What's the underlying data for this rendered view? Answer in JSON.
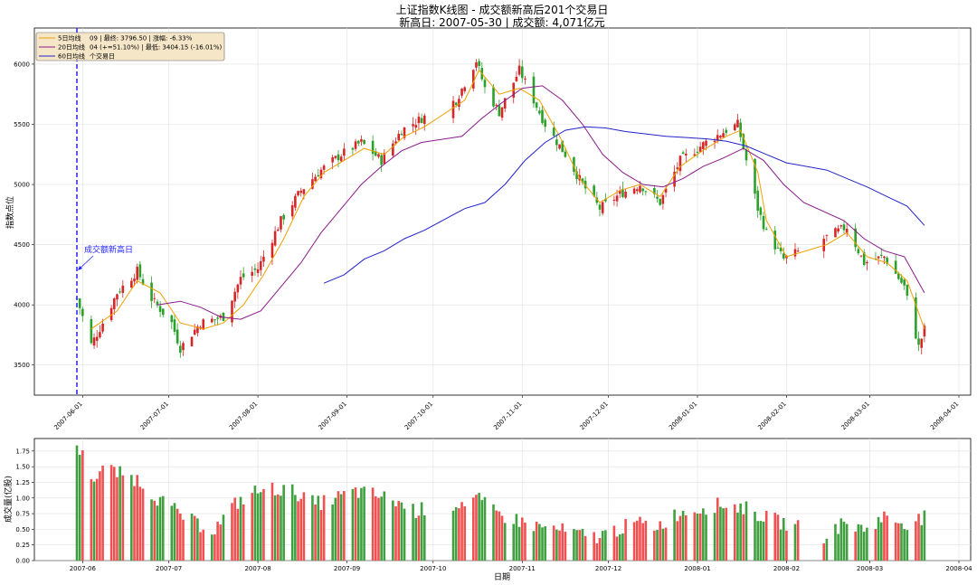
{
  "title_line1": "上证指数K线图 - 成交额新高后201个交易日",
  "title_line2": "新高日: 2007-05-30 | 成交额: 4,071亿元",
  "legend": {
    "items": [
      "5日均线",
      "20日均线",
      "60日均线"
    ],
    "info_line1": "09 | 最终: 3796.50 | 涨幅: -6.33%",
    "info_line2": "04 (+=51.10%) | 最低: 3404.15 (-16.01%)",
    "info_line3": "个交易日"
  },
  "annotation": "成交额新高日",
  "colors": {
    "up": "#d62728",
    "down": "#2ca02c",
    "ma5": "#f0a000",
    "ma20": "#8b1a8b",
    "ma60": "#2222cc",
    "marker": "#2222ff",
    "vol_up": "#f05050",
    "vol_down": "#40a040"
  },
  "chart_data": [
    {
      "type": "candlestick",
      "title": "上证指数K线图 - 成交额新高后201个交易日",
      "ylabel": "指数点位",
      "ylim": [
        3250,
        6300
      ],
      "y_ticks": [
        3500,
        4000,
        4500,
        5000,
        5500,
        6000
      ],
      "x_ticks": [
        "2007-06-01",
        "2007-07-01",
        "2007-08-01",
        "2007-09-01",
        "2007-10-01",
        "2007-11-01",
        "2007-12-01",
        "2008-01-01",
        "2008-02-01",
        "2008-03-01",
        "2008-04-01"
      ],
      "marker_date": "2007-05-30",
      "close_path": [
        [
          "2007-05-30",
          4053
        ],
        [
          "2007-06-04",
          3670
        ],
        [
          "2007-06-08",
          3850
        ],
        [
          "2007-06-13",
          4100
        ],
        [
          "2007-06-20",
          4280
        ],
        [
          "2007-06-25",
          4050
        ],
        [
          "2007-07-02",
          3850
        ],
        [
          "2007-07-05",
          3640
        ],
        [
          "2007-07-12",
          3850
        ],
        [
          "2007-07-20",
          3900
        ],
        [
          "2007-07-26",
          4220
        ],
        [
          "2007-08-01",
          4300
        ],
        [
          "2007-08-09",
          4700
        ],
        [
          "2007-08-16",
          4950
        ],
        [
          "2007-08-23",
          5120
        ],
        [
          "2007-08-30",
          5250
        ],
        [
          "2007-09-06",
          5350
        ],
        [
          "2007-09-13",
          5200
        ],
        [
          "2007-09-20",
          5450
        ],
        [
          "2007-09-27",
          5550
        ],
        [
          "2007-10-09",
          5700
        ],
        [
          "2007-10-16",
          6030
        ],
        [
          "2007-10-19",
          5800
        ],
        [
          "2007-10-24",
          5600
        ],
        [
          "2007-10-31",
          5950
        ],
        [
          "2007-11-05",
          5700
        ],
        [
          "2007-11-09",
          5500
        ],
        [
          "2007-11-16",
          5250
        ],
        [
          "2007-11-22",
          5000
        ],
        [
          "2007-11-28",
          4800
        ],
        [
          "2007-12-05",
          4920
        ],
        [
          "2007-12-12",
          5000
        ],
        [
          "2007-12-19",
          4850
        ],
        [
          "2007-12-26",
          5200
        ],
        [
          "2008-01-04",
          5350
        ],
        [
          "2008-01-11",
          5450
        ],
        [
          "2008-01-15",
          5500
        ],
        [
          "2008-01-22",
          4800
        ],
        [
          "2008-01-25",
          4600
        ],
        [
          "2008-01-31",
          4380
        ],
        [
          "2008-02-14",
          4550
        ],
        [
          "2008-02-22",
          4650
        ],
        [
          "2008-02-28",
          4350
        ],
        [
          "2008-03-06",
          4400
        ],
        [
          "2008-03-13",
          4150
        ],
        [
          "2008-03-18",
          3650
        ],
        [
          "2008-03-20",
          3796
        ]
      ],
      "ma5": [
        [
          "2007-06-04",
          3800
        ],
        [
          "2007-06-13",
          3950
        ],
        [
          "2007-06-20",
          4200
        ],
        [
          "2007-06-28",
          4100
        ],
        [
          "2007-07-05",
          3850
        ],
        [
          "2007-07-13",
          3800
        ],
        [
          "2007-07-20",
          3850
        ],
        [
          "2007-07-27",
          4000
        ],
        [
          "2007-08-03",
          4250
        ],
        [
          "2007-08-10",
          4550
        ],
        [
          "2007-08-17",
          4900
        ],
        [
          "2007-08-24",
          5100
        ],
        [
          "2007-08-31",
          5200
        ],
        [
          "2007-09-07",
          5300
        ],
        [
          "2007-09-14",
          5250
        ],
        [
          "2007-09-21",
          5400
        ],
        [
          "2007-09-28",
          5480
        ],
        [
          "2007-10-12",
          5700
        ],
        [
          "2007-10-17",
          5950
        ],
        [
          "2007-10-24",
          5750
        ],
        [
          "2007-10-31",
          5800
        ],
        [
          "2007-11-07",
          5700
        ],
        [
          "2007-11-14",
          5400
        ],
        [
          "2007-11-21",
          5050
        ],
        [
          "2007-11-28",
          4850
        ],
        [
          "2007-12-05",
          4950
        ],
        [
          "2007-12-12",
          5000
        ],
        [
          "2007-12-19",
          4900
        ],
        [
          "2007-12-26",
          5150
        ],
        [
          "2008-01-04",
          5300
        ],
        [
          "2008-01-11",
          5400
        ],
        [
          "2008-01-16",
          5450
        ],
        [
          "2008-01-22",
          5100
        ],
        [
          "2008-01-25",
          4700
        ],
        [
          "2008-02-01",
          4400
        ],
        [
          "2008-02-15",
          4500
        ],
        [
          "2008-02-22",
          4600
        ],
        [
          "2008-02-29",
          4400
        ],
        [
          "2008-03-07",
          4350
        ],
        [
          "2008-03-14",
          4200
        ],
        [
          "2008-03-20",
          3800
        ]
      ],
      "ma20": [
        [
          "2007-06-27",
          4000
        ],
        [
          "2007-07-05",
          4030
        ],
        [
          "2007-07-12",
          3980
        ],
        [
          "2007-07-19",
          3900
        ],
        [
          "2007-07-26",
          3880
        ],
        [
          "2007-08-02",
          3950
        ],
        [
          "2007-08-09",
          4150
        ],
        [
          "2007-08-16",
          4350
        ],
        [
          "2007-08-23",
          4600
        ],
        [
          "2007-08-30",
          4800
        ],
        [
          "2007-09-06",
          5000
        ],
        [
          "2007-09-13",
          5150
        ],
        [
          "2007-09-20",
          5280
        ],
        [
          "2007-09-27",
          5350
        ],
        [
          "2007-10-11",
          5400
        ],
        [
          "2007-10-18",
          5550
        ],
        [
          "2007-10-25",
          5680
        ],
        [
          "2007-11-01",
          5800
        ],
        [
          "2007-11-08",
          5820
        ],
        [
          "2007-11-15",
          5700
        ],
        [
          "2007-11-22",
          5500
        ],
        [
          "2007-11-29",
          5250
        ],
        [
          "2007-12-06",
          5100
        ],
        [
          "2007-12-13",
          5000
        ],
        [
          "2007-12-20",
          4980
        ],
        [
          "2007-12-27",
          5050
        ],
        [
          "2008-01-03",
          5150
        ],
        [
          "2008-01-10",
          5220
        ],
        [
          "2008-01-17",
          5300
        ],
        [
          "2008-01-24",
          5200
        ],
        [
          "2008-01-31",
          5000
        ],
        [
          "2008-02-07",
          4850
        ],
        [
          "2008-02-21",
          4700
        ],
        [
          "2008-02-28",
          4550
        ],
        [
          "2008-03-06",
          4450
        ],
        [
          "2008-03-13",
          4400
        ],
        [
          "2008-03-20",
          4100
        ]
      ],
      "ma60": [
        [
          "2007-08-24",
          4180
        ],
        [
          "2007-08-31",
          4250
        ],
        [
          "2007-09-07",
          4380
        ],
        [
          "2007-09-14",
          4450
        ],
        [
          "2007-09-21",
          4550
        ],
        [
          "2007-09-28",
          4620
        ],
        [
          "2007-10-12",
          4800
        ],
        [
          "2007-10-19",
          4850
        ],
        [
          "2007-10-26",
          5000
        ],
        [
          "2007-11-02",
          5200
        ],
        [
          "2007-11-09",
          5350
        ],
        [
          "2007-11-16",
          5450
        ],
        [
          "2007-11-23",
          5480
        ],
        [
          "2007-11-30",
          5470
        ],
        [
          "2007-12-07",
          5440
        ],
        [
          "2007-12-14",
          5420
        ],
        [
          "2007-12-21",
          5400
        ],
        [
          "2008-01-04",
          5380
        ],
        [
          "2008-01-11",
          5360
        ],
        [
          "2008-01-18",
          5320
        ],
        [
          "2008-01-25",
          5250
        ],
        [
          "2008-02-01",
          5180
        ],
        [
          "2008-02-15",
          5120
        ],
        [
          "2008-02-22",
          5050
        ],
        [
          "2008-02-29",
          4980
        ],
        [
          "2008-03-07",
          4900
        ],
        [
          "2008-03-14",
          4820
        ],
        [
          "2008-03-20",
          4660
        ]
      ]
    },
    {
      "type": "bar",
      "ylabel": "成交量(亿股)",
      "xlabel": "日期",
      "ylim": [
        0,
        1.95
      ],
      "y_ticks": [
        0.0,
        0.25,
        0.5,
        0.75,
        1.0,
        1.25,
        1.5,
        1.75
      ],
      "x_ticks": [
        "2007-06",
        "2007-07",
        "2007-08",
        "2007-09",
        "2007-10",
        "2007-11",
        "2007-12",
        "2008-01",
        "2008-02",
        "2008-03",
        "2008-04"
      ],
      "volume_path": [
        [
          "2007-05-30",
          1.85
        ],
        [
          "2007-06-05",
          1.3
        ],
        [
          "2007-06-08",
          1.5
        ],
        [
          "2007-06-13",
          1.4
        ],
        [
          "2007-06-20",
          1.3
        ],
        [
          "2007-06-27",
          1.0
        ],
        [
          "2007-07-03",
          0.8
        ],
        [
          "2007-07-10",
          0.6
        ],
        [
          "2007-07-17",
          0.5
        ],
        [
          "2007-07-24",
          0.9
        ],
        [
          "2007-07-31",
          1.1
        ],
        [
          "2007-08-07",
          1.15
        ],
        [
          "2007-08-14",
          1.1
        ],
        [
          "2007-08-21",
          0.9
        ],
        [
          "2007-08-28",
          1.0
        ],
        [
          "2007-09-04",
          1.1
        ],
        [
          "2007-09-11",
          1.05
        ],
        [
          "2007-09-18",
          0.95
        ],
        [
          "2007-09-25",
          0.8
        ],
        [
          "2007-10-09",
          0.9
        ],
        [
          "2007-10-16",
          1.0
        ],
        [
          "2007-10-23",
          0.75
        ],
        [
          "2007-10-30",
          0.65
        ],
        [
          "2007-11-06",
          0.55
        ],
        [
          "2007-11-13",
          0.5
        ],
        [
          "2007-11-20",
          0.42
        ],
        [
          "2007-11-27",
          0.38
        ],
        [
          "2007-12-04",
          0.5
        ],
        [
          "2007-12-11",
          0.6
        ],
        [
          "2007-12-18",
          0.55
        ],
        [
          "2007-12-25",
          0.75
        ],
        [
          "2008-01-03",
          0.85
        ],
        [
          "2008-01-10",
          0.9
        ],
        [
          "2008-01-17",
          0.85
        ],
        [
          "2008-01-24",
          0.7
        ],
        [
          "2008-01-31",
          0.6
        ],
        [
          "2008-02-14",
          0.4
        ],
        [
          "2008-02-21",
          0.6
        ],
        [
          "2008-02-28",
          0.5
        ],
        [
          "2008-03-06",
          0.7
        ],
        [
          "2008-03-13",
          0.6
        ],
        [
          "2008-03-20",
          0.68
        ]
      ]
    }
  ]
}
